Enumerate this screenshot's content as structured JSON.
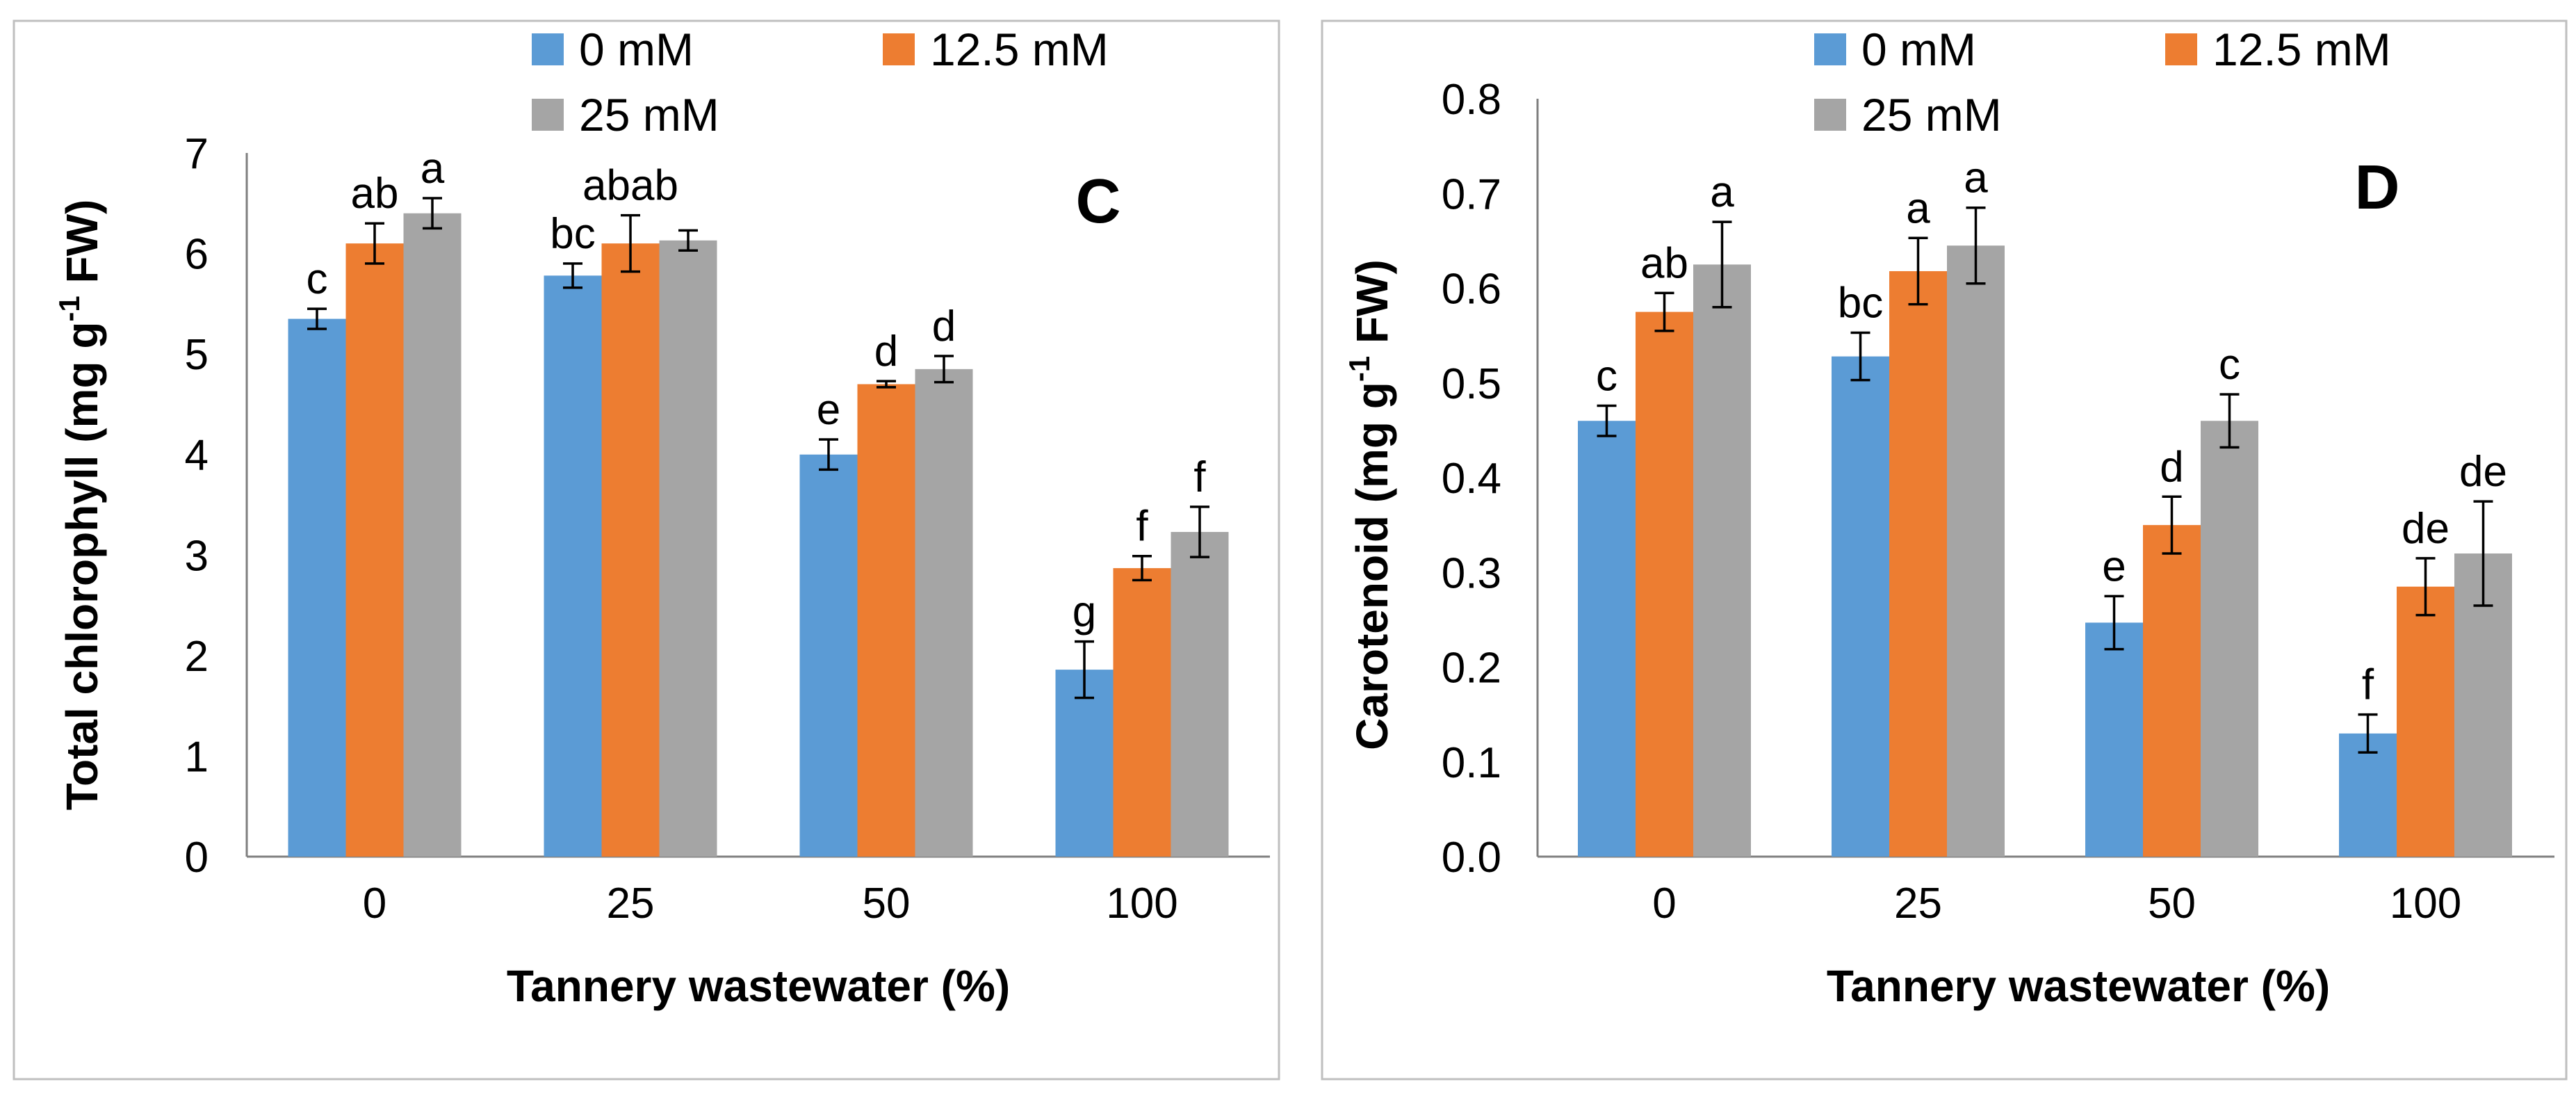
{
  "chart_data": [
    {
      "type": "bar",
      "panel_label": "C",
      "categories": [
        "0",
        "25",
        "50",
        "100"
      ],
      "xlabel": "Tannery wastewater (%)",
      "ylabel": "Total chlorophyll (mg g",
      "ylabel_sup": "-1",
      "ylabel_end": " FW)",
      "ylim": [
        0,
        7
      ],
      "yticks": [
        "0",
        "1",
        "2",
        "3",
        "4",
        "5",
        "6",
        "7"
      ],
      "legend_position": "top",
      "series": [
        {
          "name": "0 mM",
          "color": "#5b9bd5",
          "values": [
            5.35,
            5.78,
            4.0,
            1.86
          ],
          "errors": [
            0.1,
            0.12,
            0.15,
            0.28
          ],
          "letters": [
            "c",
            "bc",
            "e",
            "g"
          ]
        },
        {
          "name": "12.5 mM",
          "color": "#ed7d31",
          "values": [
            6.1,
            6.1,
            4.7,
            2.87
          ],
          "errors": [
            0.2,
            0.28,
            0.03,
            0.12
          ],
          "letters": [
            "ab",
            "abab",
            "d",
            "f"
          ]
        },
        {
          "name": "25 mM",
          "color": "#a5a5a5",
          "values": [
            6.4,
            6.13,
            4.85,
            3.23
          ],
          "errors": [
            0.15,
            0.1,
            0.13,
            0.25
          ],
          "letters": [
            "a",
            "",
            "d",
            "f"
          ]
        }
      ]
    },
    {
      "type": "bar",
      "panel_label": "D",
      "categories": [
        "0",
        "25",
        "50",
        "100"
      ],
      "xlabel": "Tannery wastewater (%)",
      "ylabel": "Carotenoid  (mg g",
      "ylabel_sup": "-1",
      "ylabel_end": " FW)",
      "ylim": [
        0,
        0.8
      ],
      "yticks": [
        "0.0",
        "0.1",
        "0.2",
        "0.3",
        "0.4",
        "0.5",
        "0.6",
        "0.7",
        "0.8"
      ],
      "legend_position": "top",
      "series": [
        {
          "name": "0 mM",
          "color": "#5b9bd5",
          "values": [
            0.46,
            0.528,
            0.247,
            0.13
          ],
          "errors": [
            0.016,
            0.025,
            0.028,
            0.02
          ],
          "letters": [
            "c",
            "bc",
            "e",
            "f"
          ]
        },
        {
          "name": "12.5 mM",
          "color": "#ed7d31",
          "values": [
            0.575,
            0.618,
            0.35,
            0.285
          ],
          "errors": [
            0.02,
            0.035,
            0.03,
            0.03
          ],
          "letters": [
            "ab",
            "a",
            "d",
            "de"
          ]
        },
        {
          "name": "25 mM",
          "color": "#a5a5a5",
          "values": [
            0.625,
            0.645,
            0.46,
            0.32
          ],
          "errors": [
            0.045,
            0.04,
            0.028,
            0.055
          ],
          "letters": [
            "a",
            "a",
            "c",
            "de"
          ]
        }
      ]
    }
  ]
}
